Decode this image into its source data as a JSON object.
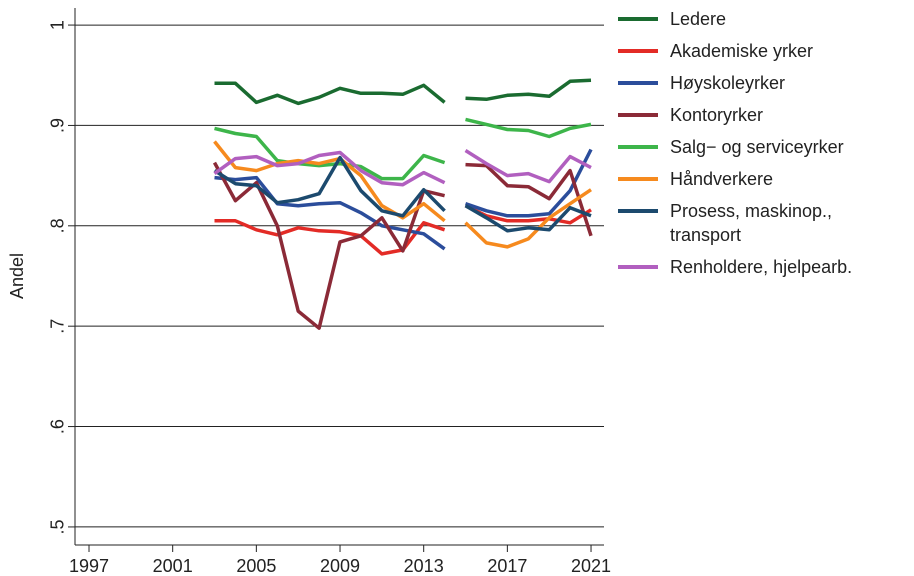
{
  "chart_data": {
    "type": "line",
    "y_label": "Andel",
    "x": [
      2003,
      2004,
      2005,
      2006,
      2007,
      2008,
      2009,
      2010,
      2011,
      2012,
      2013,
      2014,
      2014.5,
      2015,
      2016,
      2017,
      2018,
      2019,
      2020,
      2021
    ],
    "xlim": [
      1996.33,
      2021.62
    ],
    "xticks": [
      1997,
      2001,
      2005,
      2009,
      2013,
      2017,
      2021
    ],
    "ylim": [
      0.482,
      1.017
    ],
    "yticks": [
      {
        "value": 0.5,
        "label": ".5"
      },
      {
        "value": 0.6,
        "label": ".6"
      },
      {
        "value": 0.7,
        "label": ".7"
      },
      {
        "value": 0.8,
        "label": ".8"
      },
      {
        "value": 0.9,
        "label": ".9"
      },
      1
    ],
    "grid": true,
    "legend": "right",
    "series": [
      {
        "name": "Ledere",
        "color": "#1a6b30",
        "values": [
          0.942,
          0.942,
          0.923,
          0.93,
          0.922,
          0.928,
          0.937,
          0.932,
          0.932,
          0.931,
          0.94,
          0.923,
          null,
          0.927,
          0.926,
          0.93,
          0.931,
          0.929,
          0.944,
          0.945
        ]
      },
      {
        "name": "Akademiske yrker",
        "color": "#e32b26",
        "values": [
          0.805,
          0.805,
          0.796,
          0.791,
          0.798,
          0.795,
          0.794,
          0.79,
          0.772,
          0.776,
          0.803,
          0.796,
          null,
          0.82,
          0.81,
          0.805,
          0.805,
          0.807,
          0.803,
          0.816
        ]
      },
      {
        "name": "Høyskoleyrker",
        "color": "#2b4d9b",
        "values": [
          0.848,
          0.846,
          0.848,
          0.822,
          0.82,
          0.822,
          0.823,
          0.813,
          0.8,
          0.796,
          0.792,
          0.777,
          null,
          0.822,
          0.815,
          0.81,
          0.81,
          0.812,
          0.835,
          0.876
        ]
      },
      {
        "name": "Kontoryrker",
        "color": "#8b2a37",
        "values": [
          0.863,
          0.825,
          0.843,
          0.8,
          0.715,
          0.698,
          0.784,
          0.79,
          0.808,
          0.775,
          0.835,
          0.83,
          null,
          0.861,
          0.86,
          0.84,
          0.839,
          0.827,
          0.855,
          0.79
        ]
      },
      {
        "name": "Salg− og serviceyrker",
        "color": "#3db54a",
        "values": [
          0.897,
          0.892,
          0.889,
          0.865,
          0.862,
          0.86,
          0.862,
          0.859,
          0.847,
          0.847,
          0.87,
          0.863,
          null,
          0.906,
          0.901,
          0.896,
          0.895,
          0.889,
          0.897,
          0.901
        ]
      },
      {
        "name": "Håndverkere",
        "color": "#f68a1e",
        "values": [
          0.884,
          0.858,
          0.855,
          0.862,
          0.865,
          0.862,
          0.867,
          0.85,
          0.82,
          0.808,
          0.822,
          0.805,
          null,
          0.803,
          0.783,
          0.779,
          0.787,
          0.808,
          0.822,
          0.836
        ]
      },
      {
        "name": "Prosess, maskinop., transport",
        "color": "#1c4a6e",
        "values": [
          0.855,
          0.842,
          0.84,
          0.823,
          0.826,
          0.832,
          0.868,
          0.835,
          0.815,
          0.81,
          0.836,
          0.815,
          null,
          0.82,
          0.808,
          0.795,
          0.798,
          0.796,
          0.818,
          0.81
        ]
      },
      {
        "name": "Renholdere, hjelpearb.",
        "color": "#b15fbf",
        "values": [
          0.852,
          0.867,
          0.869,
          0.86,
          0.862,
          0.87,
          0.873,
          0.855,
          0.843,
          0.841,
          0.853,
          0.843,
          null,
          0.875,
          0.862,
          0.85,
          0.852,
          0.844,
          0.869,
          0.858
        ]
      }
    ]
  }
}
